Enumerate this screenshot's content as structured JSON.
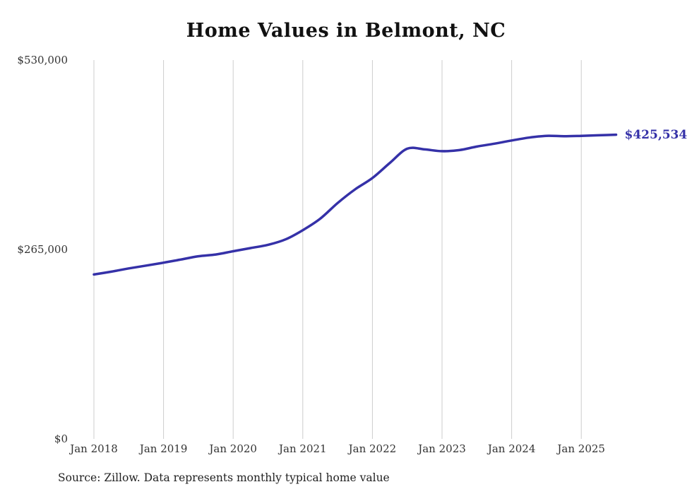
{
  "chart_data": {
    "type": "line",
    "title": "Home Values in Belmont, NC",
    "series_name": "Typical home value",
    "x": [
      "2018-01",
      "2018-04",
      "2018-07",
      "2018-10",
      "2019-01",
      "2019-04",
      "2019-07",
      "2019-10",
      "2020-01",
      "2020-04",
      "2020-07",
      "2020-10",
      "2021-01",
      "2021-04",
      "2021-07",
      "2021-10",
      "2022-01",
      "2022-04",
      "2022-07",
      "2022-10",
      "2023-01",
      "2023-04",
      "2023-07",
      "2023-10",
      "2024-01",
      "2024-04",
      "2024-07",
      "2024-10",
      "2025-01",
      "2025-04",
      "2025-07"
    ],
    "values": [
      230000,
      234000,
      238500,
      242500,
      246500,
      251000,
      255500,
      258000,
      262500,
      267000,
      271500,
      279000,
      292000,
      308000,
      330000,
      349000,
      365000,
      386000,
      406000,
      405000,
      402500,
      404000,
      409000,
      413000,
      417500,
      421500,
      424000,
      423500,
      424000,
      424800,
      425534
    ],
    "ylim": [
      0,
      530000
    ],
    "yticks": [
      {
        "value": 530000,
        "label": "$530,000"
      },
      {
        "value": 265000,
        "label": "$265,000"
      },
      {
        "value": 0,
        "label": "$0"
      }
    ],
    "xticks": [
      {
        "x": "2018-01",
        "label": "Jan 2018"
      },
      {
        "x": "2019-01",
        "label": "Jan 2019"
      },
      {
        "x": "2020-01",
        "label": "Jan 2020"
      },
      {
        "x": "2021-01",
        "label": "Jan 2021"
      },
      {
        "x": "2022-01",
        "label": "Jan 2022"
      },
      {
        "x": "2023-01",
        "label": "Jan 2023"
      },
      {
        "x": "2024-01",
        "label": "Jan 2024"
      },
      {
        "x": "2025-01",
        "label": "Jan 2025"
      }
    ],
    "end_label": "$425,534",
    "line_color": "#3531a8",
    "grid_color": "#cccccc",
    "label_color": "#333333",
    "grid": "vertical-only",
    "legend": "none",
    "source": "Source: Zillow. Data represents monthly typical home value"
  }
}
